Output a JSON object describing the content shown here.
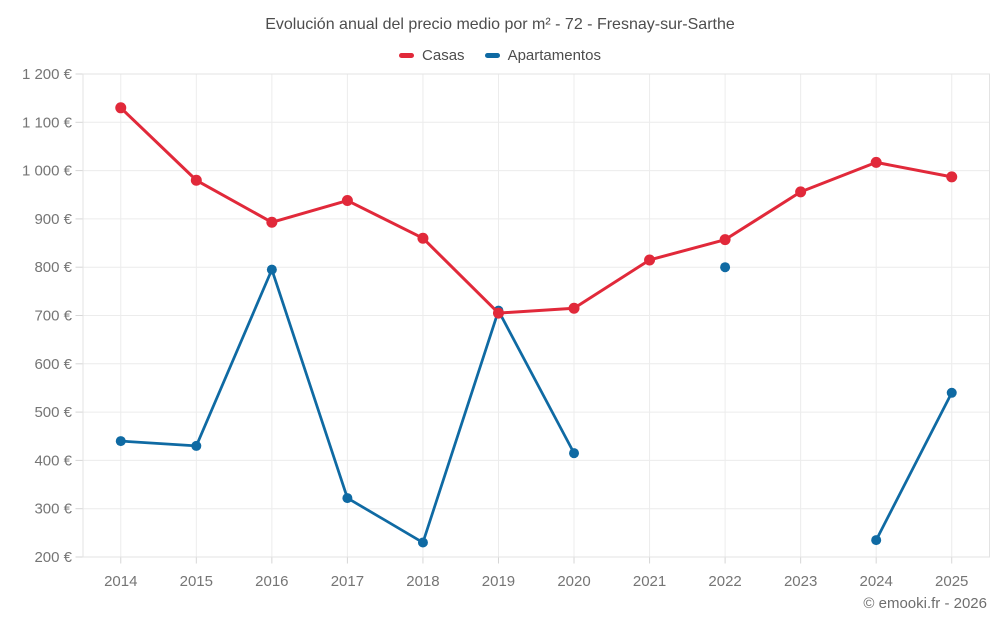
{
  "header": {
    "title": "Evolución anual del precio medio por m² - 72 - Fresnay-sur-Sarthe"
  },
  "legend": [
    {
      "label": "Casas",
      "color": "#e1293a"
    },
    {
      "label": "Apartamentos",
      "color": "#0f6aa3"
    }
  ],
  "footer": {
    "attribution": "© emooki.fr - 2026"
  },
  "colors": {
    "casas": "#e1293a",
    "apartamentos": "#0f6aa3",
    "grid": "#ececec",
    "spine": "#e3e3e3",
    "tick": "#d6d6d6",
    "tick_text": "#757575",
    "title_text": "#4d4d4d"
  },
  "chart_data": {
    "type": "line",
    "title": "Evolución anual del precio medio por m² - 72 - Fresnay-sur-Sarthe",
    "xlabel": "",
    "ylabel": "",
    "x": [
      2014,
      2015,
      2016,
      2017,
      2018,
      2019,
      2020,
      2021,
      2022,
      2023,
      2024,
      2025
    ],
    "series": [
      {
        "name": "Casas",
        "color": "#e1293a",
        "values": [
          1130,
          980,
          893,
          938,
          860,
          705,
          715,
          815,
          857,
          956,
          1017,
          987
        ]
      },
      {
        "name": "Apartamentos",
        "color": "#0f6aa3",
        "values": [
          440,
          430,
          795,
          322,
          230,
          710,
          415,
          null,
          800,
          null,
          235,
          540
        ]
      }
    ],
    "ylim": [
      200,
      1200
    ],
    "y_ticks": [
      {
        "value": 1200,
        "label": "1 200 €"
      },
      {
        "value": 1100,
        "label": "1 100 €"
      },
      {
        "value": 1000,
        "label": "1 000 €"
      },
      {
        "value": 900,
        "label": "900 €"
      },
      {
        "value": 800,
        "label": "800 €"
      },
      {
        "value": 700,
        "label": "700 €"
      },
      {
        "value": 600,
        "label": "600 €"
      },
      {
        "value": 500,
        "label": "500 €"
      },
      {
        "value": 400,
        "label": "400 €"
      },
      {
        "value": 300,
        "label": "300 €"
      },
      {
        "value": 200,
        "label": "200 €"
      }
    ],
    "grid": true,
    "legend_position": "top",
    "currency": "€"
  }
}
